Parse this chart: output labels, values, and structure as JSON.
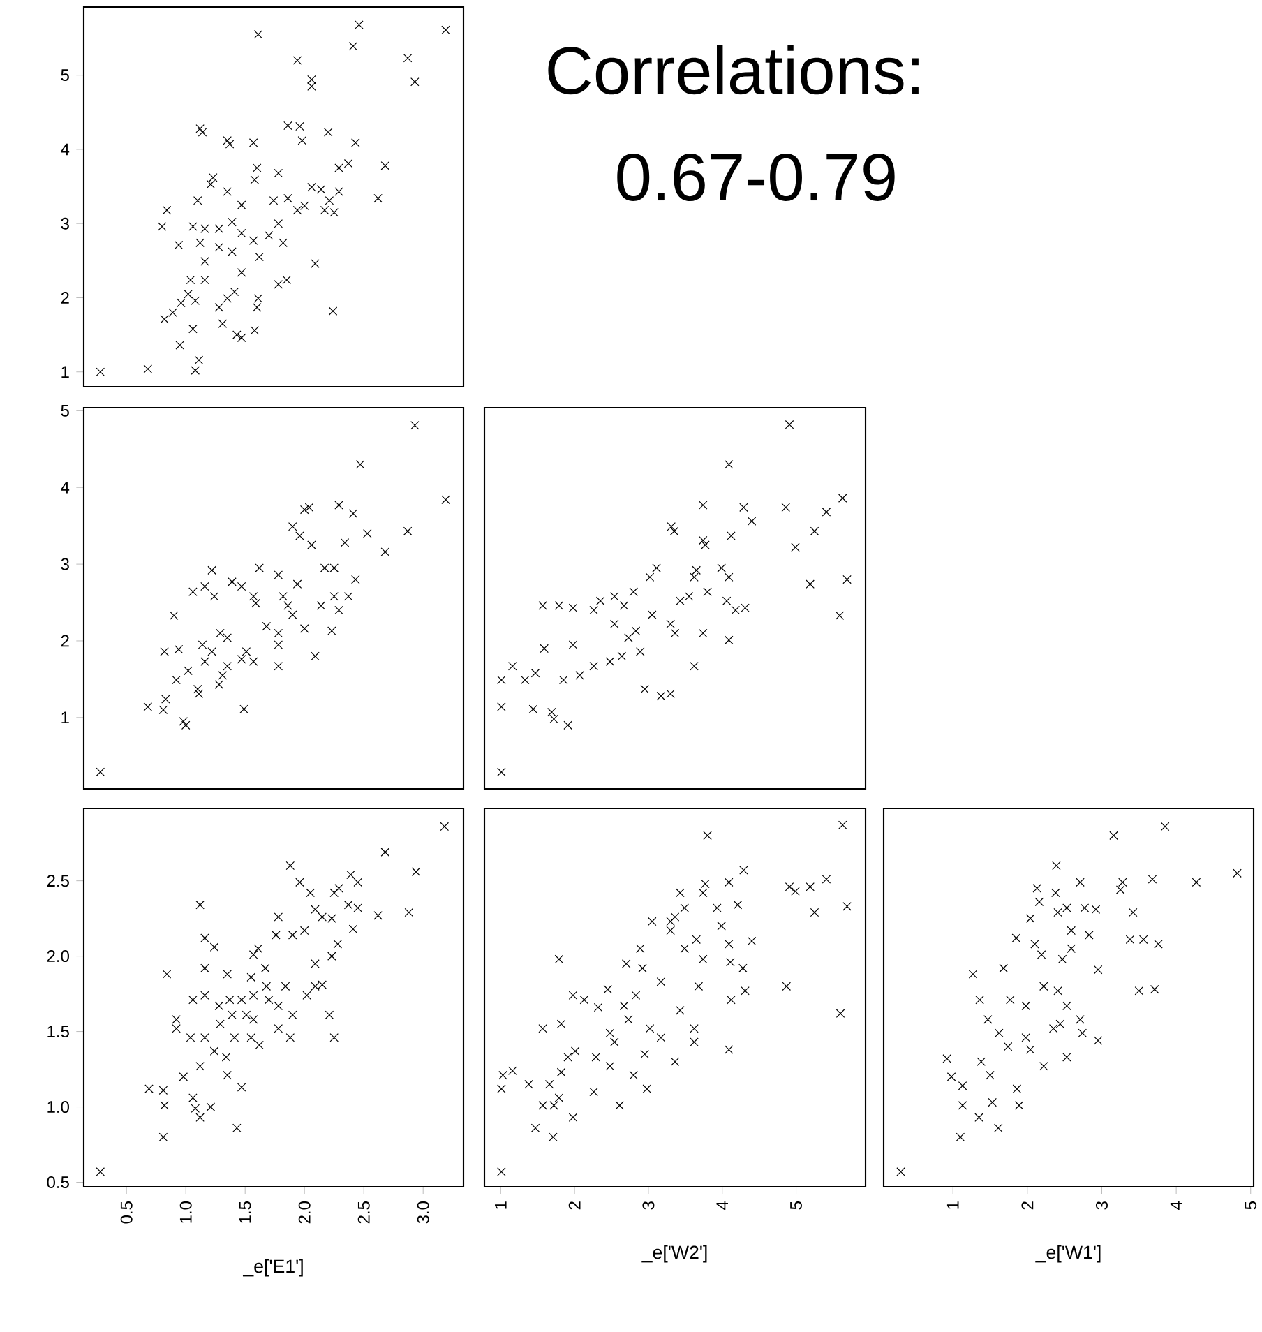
{
  "chart_data": [
    {
      "type": "scatter",
      "annotations": [
        "Correlations:",
        "0.67-0.79"
      ],
      "marker": "cross",
      "color": "#000000",
      "tick_labels": "y",
      "xlim": [
        0.14,
        3.34
      ],
      "ylim": [
        0.8,
        5.92
      ],
      "yticks": [
        1,
        2,
        3,
        4,
        5
      ],
      "x": [
        0.28,
        0.68,
        1.08,
        1.11,
        0.95,
        1.06,
        0.82,
        0.89,
        0.96,
        1.02,
        1.08,
        1.04,
        1.16,
        1.28,
        1.35,
        1.31,
        1.43,
        1.47,
        1.58,
        1.6,
        1.61,
        1.41,
        1.78,
        1.85,
        2.24,
        2.09,
        1.47,
        1.16,
        1.28,
        1.39,
        1.62,
        1.12,
        0.94,
        0.8,
        0.84,
        1.06,
        1.16,
        1.28,
        1.39,
        1.47,
        1.57,
        1.7,
        1.78,
        1.82,
        1.1,
        1.23,
        1.21,
        1.35,
        1.47,
        1.58,
        1.6,
        1.78,
        1.74,
        1.86,
        1.94,
        2.0,
        2.06,
        2.14,
        2.17,
        2.25,
        2.21,
        2.29,
        2.62,
        2.68,
        2.29,
        2.37,
        2.43,
        2.2,
        1.98,
        1.86,
        1.96,
        1.57,
        1.35,
        1.37,
        1.14,
        1.12,
        1.61,
        1.94,
        2.06,
        2.06,
        2.41,
        2.46,
        2.87,
        2.93,
        3.19
      ],
      "values": [
        1.0,
        1.04,
        1.02,
        1.16,
        1.36,
        1.58,
        1.71,
        1.8,
        1.93,
        2.05,
        1.96,
        2.24,
        2.24,
        1.87,
        1.99,
        1.65,
        1.5,
        1.46,
        1.56,
        1.87,
        1.99,
        2.08,
        2.18,
        2.24,
        1.82,
        2.46,
        2.34,
        2.49,
        2.68,
        2.62,
        2.55,
        2.74,
        2.71,
        2.96,
        3.18,
        2.96,
        2.93,
        2.93,
        3.02,
        2.87,
        2.77,
        2.84,
        3.0,
        2.74,
        3.31,
        3.62,
        3.53,
        3.43,
        3.25,
        3.59,
        3.75,
        3.68,
        3.31,
        3.34,
        3.18,
        3.24,
        3.49,
        3.46,
        3.18,
        3.15,
        3.31,
        3.43,
        3.34,
        3.78,
        3.75,
        3.81,
        4.09,
        4.23,
        4.12,
        4.32,
        4.31,
        4.09,
        4.12,
        4.07,
        4.23,
        4.28,
        5.55,
        5.2,
        4.94,
        4.85,
        5.39,
        5.68,
        5.23,
        4.91,
        5.61
      ]
    },
    {
      "type": "scatter",
      "marker": "cross",
      "color": "#000000",
      "tick_labels": "y",
      "xlim": [
        0.14,
        3.34
      ],
      "ylim": [
        0.07,
        5.04
      ],
      "yticks": [
        1,
        2,
        3,
        4,
        5
      ],
      "x": [
        0.28,
        0.68,
        0.81,
        0.83,
        0.98,
        1.0,
        0.9,
        0.82,
        0.94,
        0.92,
        1.02,
        1.11,
        1.1,
        1.16,
        1.14,
        1.22,
        1.06,
        1.16,
        1.24,
        1.22,
        1.28,
        1.31,
        1.35,
        1.35,
        1.29,
        1.39,
        1.47,
        1.49,
        1.47,
        1.51,
        1.57,
        1.59,
        1.57,
        1.62,
        1.78,
        1.68,
        1.78,
        1.78,
        1.78,
        1.82,
        1.86,
        1.94,
        1.9,
        2.0,
        2.09,
        2.14,
        2.17,
        2.25,
        2.25,
        2.23,
        2.29,
        2.37,
        2.43,
        1.9,
        1.96,
        2.06,
        2.0,
        2.04,
        2.29,
        2.41,
        2.34,
        2.53,
        2.68,
        2.87,
        2.93,
        2.47,
        3.19
      ],
      "values": [
        0.29,
        1.14,
        1.1,
        1.24,
        0.95,
        0.9,
        2.33,
        1.86,
        1.89,
        1.49,
        1.61,
        1.31,
        1.37,
        1.73,
        1.95,
        1.86,
        2.64,
        2.71,
        2.58,
        2.92,
        1.43,
        1.55,
        1.67,
        2.04,
        2.1,
        2.77,
        2.71,
        1.11,
        1.76,
        1.86,
        1.73,
        2.49,
        2.58,
        2.95,
        2.86,
        2.19,
        1.67,
        1.95,
        2.1,
        2.58,
        2.46,
        2.74,
        2.34,
        2.16,
        1.8,
        2.46,
        2.95,
        2.95,
        2.58,
        2.13,
        2.4,
        2.58,
        2.8,
        3.49,
        3.37,
        3.25,
        3.71,
        3.74,
        3.77,
        3.66,
        3.28,
        3.4,
        3.16,
        3.43,
        4.81,
        4.3,
        3.84
      ]
    },
    {
      "type": "scatter",
      "marker": "cross",
      "color": "#000000",
      "tick_labels": false,
      "xlim": [
        0.78,
        5.94
      ],
      "ylim": [
        0.07,
        5.04
      ],
      "x": [
        1.01,
        1.01,
        1.01,
        1.16,
        1.44,
        1.47,
        1.33,
        1.59,
        1.57,
        1.79,
        1.98,
        1.69,
        1.72,
        1.91,
        1.85,
        1.98,
        2.07,
        2.26,
        2.35,
        2.26,
        2.48,
        2.54,
        2.54,
        2.67,
        2.64,
        2.73,
        2.83,
        2.8,
        2.89,
        2.95,
        3.11,
        3.02,
        3.05,
        3.17,
        3.3,
        3.3,
        3.36,
        3.43,
        3.55,
        3.62,
        3.65,
        3.74,
        3.74,
        3.77,
        3.62,
        3.8,
        3.99,
        4.09,
        4.06,
        4.09,
        4.18,
        4.31,
        3.31,
        3.35,
        3.74,
        4.12,
        4.29,
        4.4,
        4.09,
        4.91,
        4.86,
        4.99,
        5.19,
        5.25,
        5.41,
        5.63,
        5.69,
        5.59
      ],
      "values": [
        0.29,
        1.14,
        1.49,
        1.67,
        1.11,
        1.58,
        1.49,
        1.9,
        2.46,
        2.46,
        2.43,
        1.07,
        0.98,
        0.9,
        1.49,
        1.95,
        1.55,
        2.4,
        2.52,
        1.67,
        1.73,
        2.58,
        2.22,
        2.46,
        1.8,
        2.04,
        2.13,
        2.64,
        1.86,
        1.37,
        2.95,
        2.83,
        2.34,
        1.28,
        1.31,
        2.22,
        2.1,
        2.52,
        2.58,
        1.67,
        2.92,
        2.1,
        3.31,
        3.25,
        2.83,
        2.64,
        2.95,
        2.83,
        2.52,
        2.01,
        2.4,
        2.43,
        3.49,
        3.43,
        3.77,
        3.37,
        3.74,
        3.56,
        4.3,
        4.82,
        3.74,
        3.22,
        2.74,
        3.43,
        3.68,
        3.86,
        2.8,
        2.33
      ]
    },
    {
      "type": "scatter",
      "xlabel": "_e['E1']",
      "marker": "cross",
      "color": "#000000",
      "xlim": [
        0.14,
        3.34
      ],
      "ylim": [
        0.47,
        2.98
      ],
      "xticks": [
        0.5,
        {
          "value": 1,
          "label": "1.0"
        },
        1.5,
        {
          "value": 2,
          "label": "2.0"
        },
        2.5,
        {
          "value": 3,
          "label": "3.0"
        }
      ],
      "yticks": [
        0.5,
        {
          "value": 1,
          "label": "1.0"
        },
        1.5,
        {
          "value": 2,
          "label": "2.0"
        },
        2.5
      ],
      "x": [
        0.28,
        0.69,
        0.81,
        0.82,
        0.81,
        0.84,
        0.92,
        0.92,
        1.04,
        0.98,
        1.06,
        1.08,
        1.12,
        1.21,
        1.12,
        1.16,
        1.24,
        1.16,
        1.16,
        1.06,
        1.16,
        1.12,
        1.24,
        1.29,
        1.28,
        1.35,
        1.37,
        1.39,
        1.41,
        1.34,
        1.35,
        1.47,
        1.43,
        1.47,
        1.51,
        1.57,
        1.55,
        1.62,
        1.57,
        1.55,
        1.57,
        1.61,
        1.67,
        1.68,
        1.7,
        1.78,
        1.78,
        1.84,
        1.88,
        1.9,
        1.78,
        1.76,
        1.88,
        1.9,
        2.0,
        1.96,
        2.02,
        2.09,
        2.15,
        2.09,
        2.23,
        2.21,
        2.25,
        2.28,
        2.41,
        2.05,
        2.09,
        2.15,
        2.23,
        2.25,
        2.29,
        2.39,
        2.45,
        2.37,
        2.45,
        2.62,
        2.68,
        2.88,
        2.94,
        3.18
      ],
      "values": [
        0.57,
        1.12,
        1.11,
        1.01,
        0.8,
        1.88,
        1.58,
        1.52,
        1.46,
        1.2,
        1.06,
        0.99,
        0.93,
        1.0,
        2.34,
        2.12,
        2.06,
        1.92,
        1.74,
        1.71,
        1.46,
        1.27,
        1.37,
        1.55,
        1.67,
        1.88,
        1.71,
        1.61,
        1.46,
        1.33,
        1.21,
        1.13,
        0.86,
        1.71,
        1.61,
        1.58,
        1.46,
        1.41,
        1.74,
        1.86,
        2.01,
        2.05,
        1.92,
        1.8,
        1.71,
        1.52,
        1.67,
        1.8,
        1.46,
        1.61,
        2.26,
        2.14,
        2.6,
        2.14,
        2.17,
        2.49,
        1.74,
        1.8,
        1.81,
        1.95,
        2.0,
        1.61,
        1.46,
        2.08,
        2.18,
        2.42,
        2.31,
        2.26,
        2.25,
        2.42,
        2.45,
        2.54,
        2.49,
        2.34,
        2.32,
        2.27,
        2.69,
        2.29,
        2.56,
        2.86
      ]
    },
    {
      "type": "scatter",
      "xlabel": "_e['W2']",
      "marker": "cross",
      "color": "#000000",
      "tick_labels": "x",
      "xlim": [
        0.78,
        5.94
      ],
      "ylim": [
        0.47,
        2.98
      ],
      "xticks": [
        1,
        2,
        3,
        4,
        5
      ],
      "x": [
        1.01,
        1.01,
        1.03,
        1.16,
        1.38,
        1.47,
        1.71,
        1.57,
        1.72,
        1.79,
        1.98,
        1.66,
        1.82,
        1.91,
        2.01,
        1.57,
        1.82,
        1.79,
        1.98,
        2.13,
        2.32,
        2.26,
        2.61,
        2.29,
        2.48,
        2.54,
        2.48,
        2.45,
        2.67,
        2.73,
        2.8,
        2.98,
        2.95,
        2.92,
        2.89,
        2.7,
        2.83,
        3.02,
        3.17,
        3.17,
        3.05,
        3.3,
        3.36,
        3.3,
        3.43,
        3.36,
        3.49,
        3.49,
        3.43,
        3.62,
        3.62,
        3.68,
        3.65,
        3.74,
        3.8,
        3.77,
        3.74,
        3.93,
        3.99,
        4.09,
        4.09,
        4.09,
        4.12,
        4.11,
        4.21,
        4.29,
        4.31,
        4.28,
        4.4,
        4.87,
        4.91,
        4.99,
        5.19,
        5.41,
        5.25,
        5.69,
        5.6,
        5.63
      ],
      "values": [
        0.57,
        1.12,
        1.21,
        1.24,
        1.15,
        0.86,
        0.8,
        1.01,
        1.01,
        1.06,
        0.93,
        1.15,
        1.23,
        1.33,
        1.37,
        1.52,
        1.55,
        1.98,
        1.74,
        1.71,
        1.66,
        1.1,
        1.01,
        1.33,
        1.27,
        1.43,
        1.49,
        1.78,
        1.67,
        1.58,
        1.21,
        1.12,
        1.35,
        1.92,
        2.05,
        1.95,
        1.74,
        1.52,
        1.46,
        1.83,
        2.23,
        2.23,
        1.3,
        2.17,
        2.42,
        2.26,
        2.32,
        2.05,
        1.64,
        1.52,
        1.43,
        1.8,
        2.11,
        1.98,
        2.8,
        2.48,
        2.42,
        2.32,
        2.2,
        2.49,
        2.08,
        1.38,
        1.71,
        1.96,
        2.34,
        2.57,
        1.77,
        1.92,
        2.1,
        1.8,
        2.46,
        2.43,
        2.46,
        2.51,
        2.29,
        2.33,
        1.62,
        2.87
      ]
    },
    {
      "type": "scatter",
      "xlabel": "_e['W1']",
      "marker": "cross",
      "color": "#000000",
      "tick_labels": "x",
      "xlim": [
        0.07,
        5.04
      ],
      "ylim": [
        0.47,
        2.98
      ],
      "xticks": [
        1,
        2,
        3,
        4,
        5
      ],
      "x": [
        0.3,
        0.92,
        0.98,
        1.13,
        1.1,
        1.13,
        1.35,
        1.27,
        1.36,
        1.47,
        1.38,
        1.5,
        1.53,
        1.61,
        1.62,
        1.68,
        1.74,
        1.86,
        1.89,
        1.77,
        1.85,
        1.98,
        2.04,
        2.13,
        2.16,
        2.04,
        2.1,
        2.19,
        2.22,
        2.22,
        2.38,
        2.39,
        2.41,
        2.53,
        2.47,
        2.59,
        2.59,
        2.41,
        2.35,
        2.44,
        2.53,
        2.71,
        2.77,
        2.92,
        2.83,
        2.71,
        2.74,
        2.95,
        2.95,
        3.16,
        3.25,
        3.28,
        3.42,
        3.68,
        3.38,
        3.56,
        3.76,
        3.5,
        3.71,
        3.85,
        4.27,
        4.82,
        2.53,
        1.98
      ],
      "values": [
        0.57,
        1.32,
        1.2,
        1.14,
        0.8,
        1.01,
        0.93,
        1.88,
        1.71,
        1.58,
        1.3,
        1.21,
        1.03,
        0.86,
        1.49,
        1.92,
        1.4,
        1.12,
        1.01,
        1.71,
        2.12,
        1.46,
        1.38,
        2.45,
        2.36,
        2.25,
        2.08,
        2.01,
        1.8,
        1.27,
        2.42,
        2.6,
        2.29,
        2.32,
        1.98,
        2.05,
        2.17,
        1.77,
        1.52,
        1.55,
        1.33,
        2.49,
        2.32,
        2.31,
        2.14,
        1.58,
        1.49,
        1.44,
        1.91,
        2.8,
        2.44,
        2.49,
        2.29,
        2.51,
        2.11,
        2.11,
        2.08,
        1.77,
        1.78,
        2.86,
        2.49,
        2.55,
        1.67,
        1.67
      ]
    }
  ]
}
